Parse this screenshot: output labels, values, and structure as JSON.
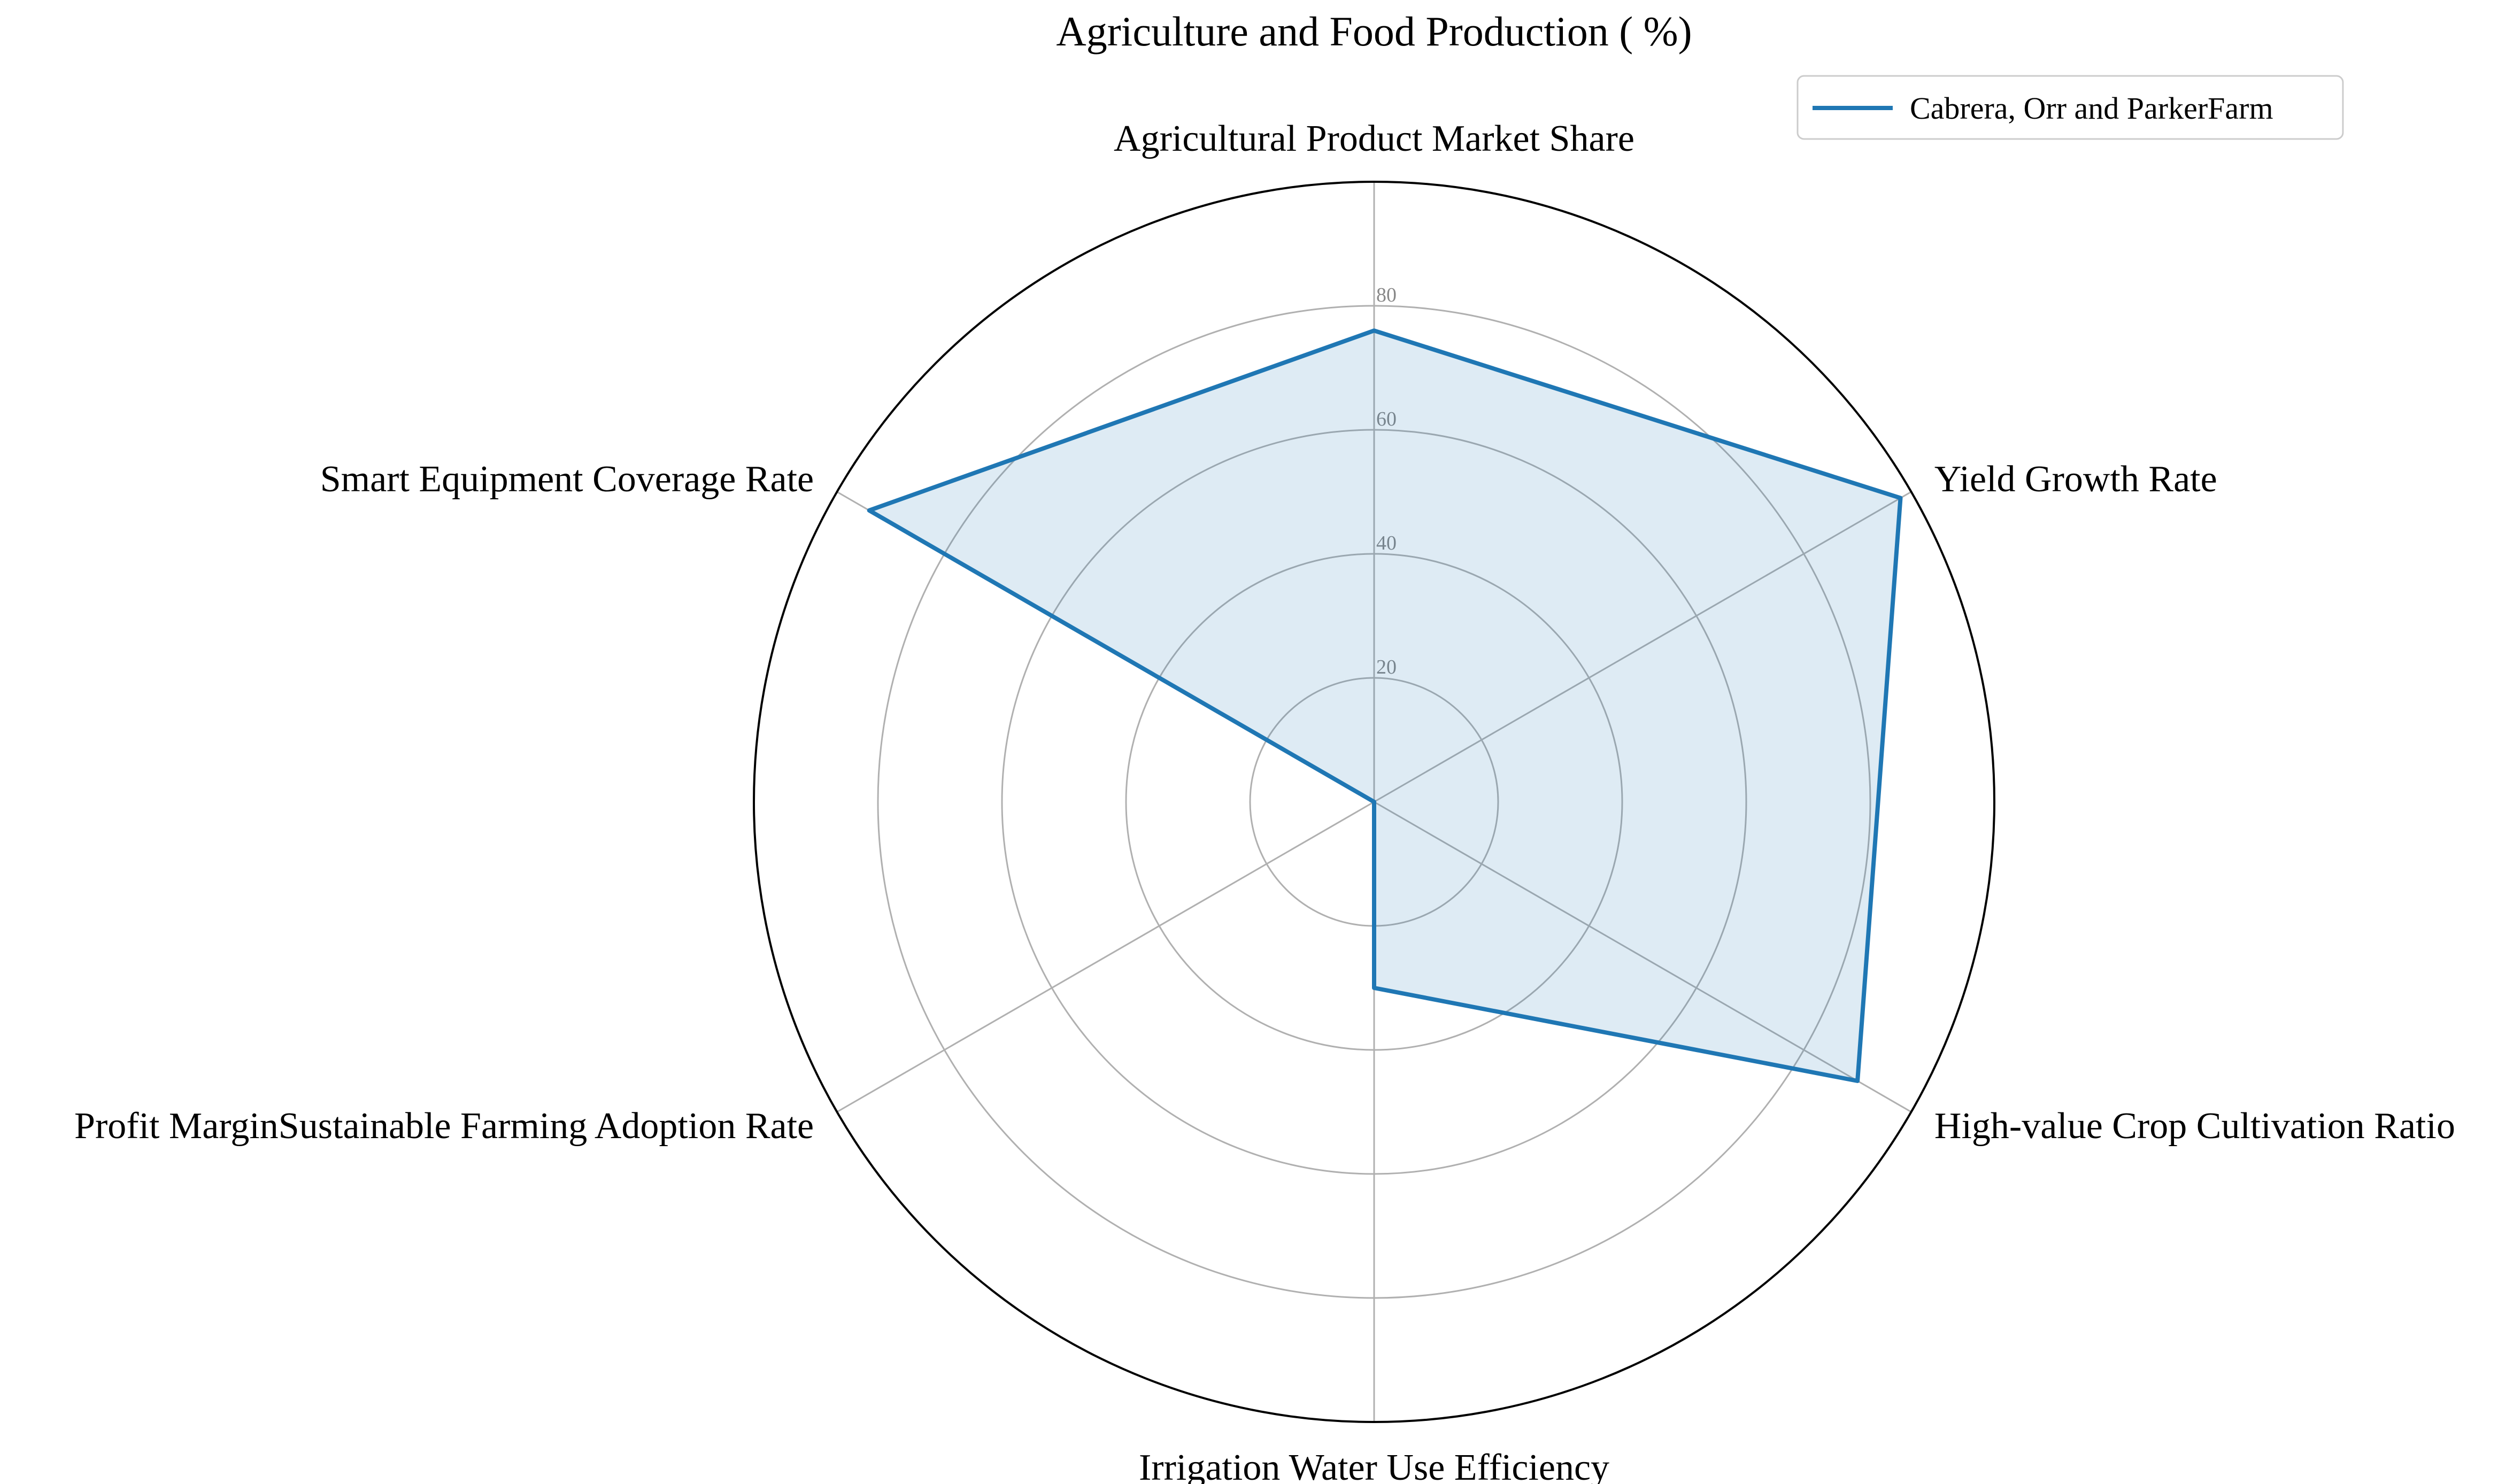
{
  "chart_data": {
    "type": "radar",
    "title": "Agriculture and Food Production ( %)",
    "axes": [
      "Agricultural Product Market Share",
      "Yield Growth Rate",
      "High-value Crop Cultivation Ratio",
      "Irrigation Water Use Efficiency",
      "Profit MarginSustainable Farming Adoption Rate",
      "Smart Equipment Coverage Rate"
    ],
    "series": [
      {
        "name": "Cabrera, Orr and ParkerFarm",
        "values": [
          76,
          98,
          90,
          30,
          0,
          94
        ]
      }
    ],
    "rlim": [
      0,
      100
    ],
    "rticks": [
      "20",
      "40",
      "60",
      "80"
    ],
    "grid": true,
    "legend_position": "top-right",
    "colors": {
      "line": "#1f77b4",
      "fill": "#1f77b4",
      "grid": "#b0b0b0",
      "frame": "#000000"
    }
  }
}
